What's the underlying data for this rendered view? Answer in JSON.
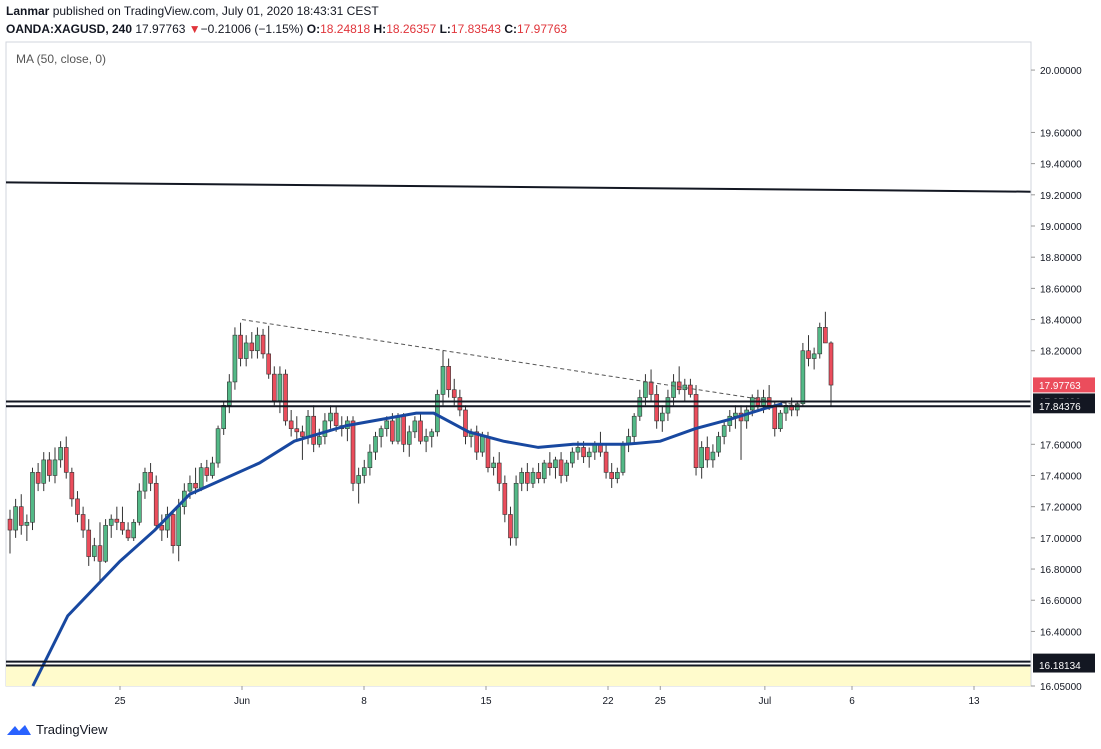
{
  "header": {
    "author": "Lanmar",
    "published": "published on TradingView.com, July 01, 2020 18:43:31 CEST",
    "symbol": "OANDA:XAGUSD, 240",
    "last": "17.97763",
    "change_arrow": "▼",
    "change": "−0.21006 (−1.15%)",
    "o_label": "O:",
    "o": "18.24818",
    "h_label": "H:",
    "h": "18.26357",
    "l_label": "L:",
    "l": "17.83543",
    "c_label": "C:",
    "c": "17.97763"
  },
  "indicator_label": "MA (50, close, 0)",
  "footer": {
    "brand": "TradingView",
    "logo_icon": "tradingview-logo-icon"
  },
  "colors": {
    "up": "#53b987",
    "down": "#eb4d5c",
    "ma": "#1848a0",
    "zone": "#fffbcc",
    "last_price_tag": "#eb4d5c",
    "level_tag": "#131722"
  },
  "chart_data": {
    "type": "candlestick",
    "interval": "240",
    "ylim": [
      16.05,
      20.18
    ],
    "y_ticks": [
      "20.00000",
      "19.60000",
      "19.40000",
      "19.20000",
      "19.00000",
      "18.80000",
      "18.60000",
      "18.40000",
      "18.20000",
      "17.60000",
      "17.40000",
      "17.20000",
      "17.00000",
      "16.80000",
      "16.60000",
      "16.40000",
      "16.05000"
    ],
    "x_ticks": [
      "25",
      "Jun",
      "8",
      "15",
      "22",
      "25",
      "Jul",
      "6",
      "13"
    ],
    "price_tags": [
      {
        "label": "17.97763",
        "kind": "last"
      },
      {
        "label": "17.87486",
        "kind": "level"
      },
      {
        "label": "17.84376",
        "kind": "level"
      },
      {
        "label": "16.20636",
        "kind": "level"
      },
      {
        "label": "16.18134",
        "kind": "level"
      }
    ],
    "horizontal_levels": [
      17.87486,
      17.84376,
      16.20636,
      16.18134
    ],
    "resistance_line": {
      "from": {
        "date": "May 19",
        "price": 19.28
      },
      "to": {
        "date": "Jul 13",
        "price": 19.22
      }
    },
    "dashed_trendline": {
      "from": {
        "date": "Jun 1",
        "price": 18.4
      },
      "to": {
        "date": "Jul 3",
        "price": 17.85
      }
    },
    "support_zone": [
      16.05,
      16.18134
    ],
    "ma_series": {
      "name": "MA (50, close, 0)",
      "points": [
        [
          "May 20",
          16.05
        ],
        [
          "May 22",
          16.5
        ],
        [
          "May 25",
          16.85
        ],
        [
          "May 27",
          17.05
        ],
        [
          "May 29",
          17.28
        ],
        [
          "Jun 2",
          17.48
        ],
        [
          "Jun 4",
          17.62
        ],
        [
          "Jun 7",
          17.72
        ],
        [
          "Jun 9",
          17.76
        ],
        [
          "Jun 11",
          17.8
        ],
        [
          "Jun 12",
          17.8
        ],
        [
          "Jun 14",
          17.68
        ],
        [
          "Jun 16",
          17.62
        ],
        [
          "Jun 18",
          17.58
        ],
        [
          "Jun 20",
          17.6
        ],
        [
          "Jun 23",
          17.6
        ],
        [
          "Jun 25",
          17.62
        ],
        [
          "Jun 27",
          17.7
        ],
        [
          "Jun 29",
          17.76
        ],
        [
          "Jul 1",
          17.83
        ],
        [
          "Jul 2",
          17.86
        ]
      ]
    },
    "candles": [
      [
        17.12,
        17.18,
        16.9,
        17.05
      ],
      [
        17.05,
        17.25,
        17.0,
        17.2
      ],
      [
        17.2,
        17.28,
        17.02,
        17.08
      ],
      [
        17.08,
        17.15,
        16.98,
        17.1
      ],
      [
        17.1,
        17.45,
        17.05,
        17.42
      ],
      [
        17.42,
        17.48,
        17.3,
        17.35
      ],
      [
        17.35,
        17.55,
        17.3,
        17.5
      ],
      [
        17.5,
        17.55,
        17.36,
        17.4
      ],
      [
        17.4,
        17.58,
        17.35,
        17.5
      ],
      [
        17.5,
        17.62,
        17.45,
        17.58
      ],
      [
        17.58,
        17.65,
        17.38,
        17.42
      ],
      [
        17.42,
        17.45,
        17.2,
        17.25
      ],
      [
        17.25,
        17.3,
        17.1,
        17.15
      ],
      [
        17.15,
        17.2,
        17.0,
        17.05
      ],
      [
        17.05,
        17.12,
        16.82,
        16.88
      ],
      [
        16.88,
        17.0,
        16.85,
        16.95
      ],
      [
        16.95,
        17.1,
        16.72,
        16.85
      ],
      [
        16.85,
        17.12,
        16.84,
        17.08
      ],
      [
        17.08,
        17.15,
        17.0,
        17.12
      ],
      [
        17.12,
        17.2,
        17.05,
        17.1
      ],
      [
        17.1,
        17.2,
        17.02,
        17.05
      ],
      [
        17.05,
        17.1,
        16.98,
        17.0
      ],
      [
        17.0,
        17.12,
        16.98,
        17.1
      ],
      [
        17.1,
        17.35,
        17.08,
        17.3
      ],
      [
        17.3,
        17.45,
        17.25,
        17.42
      ],
      [
        17.42,
        17.48,
        17.3,
        17.35
      ],
      [
        17.35,
        17.4,
        17.05,
        17.08
      ],
      [
        17.08,
        17.15,
        16.98,
        17.05
      ],
      [
        17.05,
        17.2,
        17.0,
        17.15
      ],
      [
        17.15,
        17.18,
        16.9,
        16.95
      ],
      [
        16.95,
        17.25,
        16.85,
        17.2
      ],
      [
        17.2,
        17.35,
        17.15,
        17.3
      ],
      [
        17.3,
        17.4,
        17.25,
        17.35
      ],
      [
        17.35,
        17.45,
        17.28,
        17.32
      ],
      [
        17.32,
        17.48,
        17.3,
        17.45
      ],
      [
        17.45,
        17.5,
        17.36,
        17.4
      ],
      [
        17.4,
        17.52,
        17.38,
        17.48
      ],
      [
        17.48,
        17.72,
        17.45,
        17.7
      ],
      [
        17.7,
        17.88,
        17.66,
        17.85
      ],
      [
        17.85,
        18.05,
        17.8,
        18.0
      ],
      [
        18.0,
        18.35,
        17.95,
        18.3
      ],
      [
        18.3,
        18.38,
        18.1,
        18.15
      ],
      [
        18.15,
        18.3,
        18.1,
        18.25
      ],
      [
        18.25,
        18.32,
        18.15,
        18.2
      ],
      [
        18.2,
        18.35,
        18.15,
        18.3
      ],
      [
        18.3,
        18.34,
        18.15,
        18.18
      ],
      [
        18.18,
        18.36,
        18.02,
        18.05
      ],
      [
        18.05,
        18.1,
        17.85,
        17.88
      ],
      [
        17.88,
        18.1,
        17.8,
        18.05
      ],
      [
        18.05,
        18.08,
        17.72,
        17.75
      ],
      [
        17.75,
        17.82,
        17.65,
        17.7
      ],
      [
        17.7,
        17.78,
        17.62,
        17.68
      ],
      [
        17.68,
        17.72,
        17.5,
        17.65
      ],
      [
        17.65,
        17.82,
        17.6,
        17.78
      ],
      [
        17.78,
        17.85,
        17.55,
        17.6
      ],
      [
        17.6,
        17.7,
        17.58,
        17.65
      ],
      [
        17.65,
        17.8,
        17.6,
        17.75
      ],
      [
        17.75,
        17.85,
        17.7,
        17.8
      ],
      [
        17.8,
        17.84,
        17.68,
        17.72
      ],
      [
        17.72,
        17.78,
        17.65,
        17.7
      ],
      [
        17.7,
        17.78,
        17.62,
        17.75
      ],
      [
        17.75,
        17.78,
        17.3,
        17.35
      ],
      [
        17.35,
        17.45,
        17.22,
        17.4
      ],
      [
        17.4,
        17.5,
        17.35,
        17.45
      ],
      [
        17.45,
        17.6,
        17.4,
        17.55
      ],
      [
        17.55,
        17.68,
        17.5,
        17.65
      ],
      [
        17.65,
        17.72,
        17.58,
        17.7
      ],
      [
        17.7,
        17.78,
        17.65,
        17.75
      ],
      [
        17.75,
        17.8,
        17.6,
        17.62
      ],
      [
        17.62,
        17.8,
        17.6,
        17.78
      ],
      [
        17.78,
        17.8,
        17.55,
        17.6
      ],
      [
        17.6,
        17.72,
        17.52,
        17.68
      ],
      [
        17.68,
        17.78,
        17.64,
        17.75
      ],
      [
        17.75,
        17.8,
        17.6,
        17.62
      ],
      [
        17.62,
        17.7,
        17.55,
        17.65
      ],
      [
        17.65,
        17.7,
        17.58,
        17.68
      ],
      [
        17.68,
        17.95,
        17.65,
        17.92
      ],
      [
        17.92,
        18.2,
        17.85,
        18.1
      ],
      [
        18.1,
        18.15,
        17.9,
        17.95
      ],
      [
        17.95,
        18.02,
        17.85,
        17.9
      ],
      [
        17.9,
        17.95,
        17.78,
        17.82
      ],
      [
        17.82,
        17.85,
        17.6,
        17.65
      ],
      [
        17.65,
        17.7,
        17.58,
        17.68
      ],
      [
        17.68,
        17.72,
        17.5,
        17.55
      ],
      [
        17.55,
        17.68,
        17.52,
        17.65
      ],
      [
        17.65,
        17.68,
        17.42,
        17.45
      ],
      [
        17.45,
        17.52,
        17.4,
        17.48
      ],
      [
        17.48,
        17.55,
        17.3,
        17.35
      ],
      [
        17.35,
        17.4,
        17.1,
        17.15
      ],
      [
        17.15,
        17.2,
        16.95,
        17.0
      ],
      [
        17.0,
        17.4,
        16.95,
        17.35
      ],
      [
        17.35,
        17.45,
        17.3,
        17.42
      ],
      [
        17.42,
        17.48,
        17.3,
        17.35
      ],
      [
        17.35,
        17.45,
        17.32,
        17.42
      ],
      [
        17.42,
        17.48,
        17.35,
        17.38
      ],
      [
        17.38,
        17.5,
        17.35,
        17.48
      ],
      [
        17.48,
        17.55,
        17.4,
        17.45
      ],
      [
        17.45,
        17.52,
        17.38,
        17.5
      ],
      [
        17.5,
        17.55,
        17.35,
        17.4
      ],
      [
        17.4,
        17.5,
        17.36,
        17.48
      ],
      [
        17.48,
        17.58,
        17.45,
        17.55
      ],
      [
        17.55,
        17.62,
        17.5,
        17.58
      ],
      [
        17.58,
        17.62,
        17.48,
        17.52
      ],
      [
        17.52,
        17.58,
        17.45,
        17.55
      ],
      [
        17.55,
        17.62,
        17.5,
        17.6
      ],
      [
        17.6,
        17.68,
        17.52,
        17.55
      ],
      [
        17.55,
        17.6,
        17.38,
        17.42
      ],
      [
        17.42,
        17.48,
        17.32,
        17.38
      ],
      [
        17.38,
        17.45,
        17.35,
        17.42
      ],
      [
        17.42,
        17.62,
        17.4,
        17.6
      ],
      [
        17.6,
        17.7,
        17.55,
        17.65
      ],
      [
        17.65,
        17.8,
        17.6,
        17.78
      ],
      [
        17.78,
        17.95,
        17.75,
        17.9
      ],
      [
        17.9,
        18.05,
        17.85,
        18.0
      ],
      [
        18.0,
        18.08,
        17.88,
        17.92
      ],
      [
        17.92,
        17.98,
        17.7,
        17.75
      ],
      [
        17.75,
        17.85,
        17.68,
        17.8
      ],
      [
        17.8,
        17.95,
        17.75,
        17.9
      ],
      [
        17.9,
        18.05,
        17.85,
        18.0
      ],
      [
        18.0,
        18.1,
        17.92,
        17.95
      ],
      [
        17.95,
        18.02,
        17.88,
        17.98
      ],
      [
        17.98,
        18.02,
        17.9,
        17.92
      ],
      [
        17.92,
        17.98,
        17.4,
        17.45
      ],
      [
        17.45,
        17.62,
        17.38,
        17.58
      ],
      [
        17.58,
        17.65,
        17.45,
        17.5
      ],
      [
        17.5,
        17.6,
        17.45,
        17.55
      ],
      [
        17.55,
        17.68,
        17.52,
        17.65
      ],
      [
        17.65,
        17.75,
        17.6,
        17.72
      ],
      [
        17.72,
        17.82,
        17.68,
        17.78
      ],
      [
        17.78,
        17.85,
        17.7,
        17.8
      ],
      [
        17.8,
        17.85,
        17.5,
        17.75
      ],
      [
        17.75,
        17.85,
        17.7,
        17.82
      ],
      [
        17.82,
        17.92,
        17.78,
        17.9
      ],
      [
        17.9,
        17.95,
        17.82,
        17.85
      ],
      [
        17.85,
        17.95,
        17.8,
        17.9
      ],
      [
        17.9,
        17.98,
        17.82,
        17.85
      ],
      [
        17.85,
        17.88,
        17.65,
        17.7
      ],
      [
        17.7,
        17.82,
        17.68,
        17.8
      ],
      [
        17.8,
        17.88,
        17.75,
        17.85
      ],
      [
        17.85,
        17.9,
        17.78,
        17.82
      ],
      [
        17.82,
        17.88,
        17.78,
        17.86
      ],
      [
        17.86,
        18.25,
        17.84,
        18.2
      ],
      [
        18.2,
        18.3,
        18.1,
        18.15
      ],
      [
        18.15,
        18.22,
        18.08,
        18.18
      ],
      [
        18.18,
        18.38,
        18.15,
        18.35
      ],
      [
        18.35,
        18.45,
        18.25,
        18.25
      ],
      [
        18.25,
        18.26,
        17.84,
        17.98
      ]
    ]
  }
}
